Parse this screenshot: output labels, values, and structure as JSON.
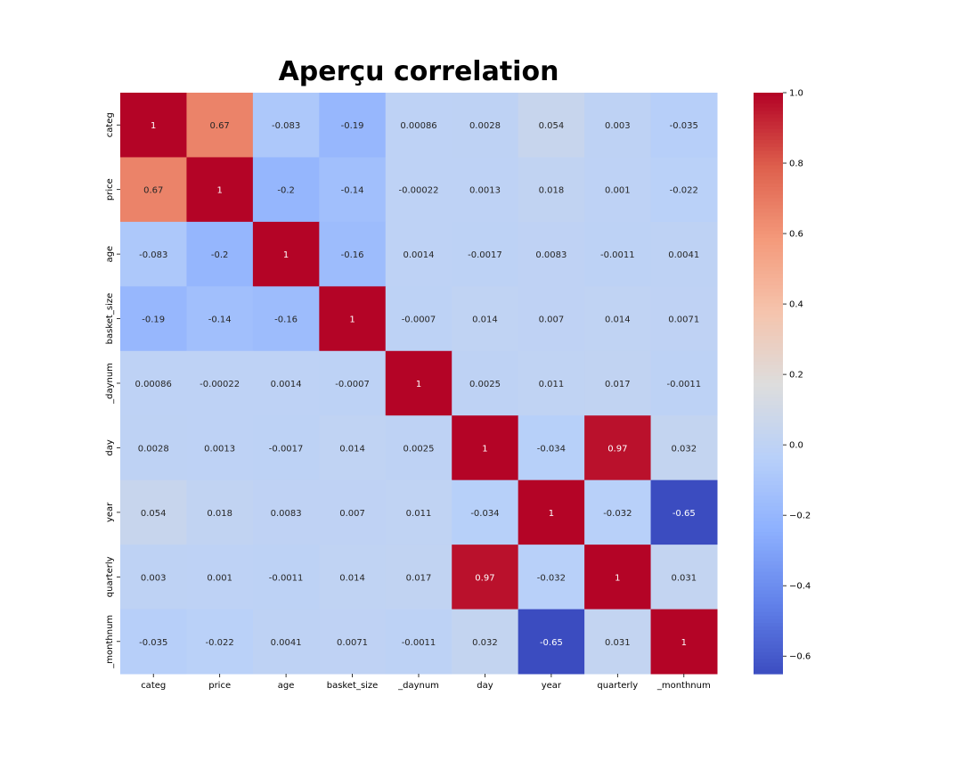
{
  "chart_data": {
    "type": "heatmap",
    "title": "Aperçu correlation",
    "xlabel": "",
    "ylabel": "",
    "categories": [
      "categ",
      "price",
      "age",
      "basket_size",
      "_daynum",
      "day",
      "year",
      "quarterly",
      "_monthnum"
    ],
    "matrix": [
      [
        1,
        0.67,
        -0.083,
        -0.19,
        0.00086,
        0.0028,
        0.054,
        0.003,
        -0.035
      ],
      [
        0.67,
        1,
        -0.2,
        -0.14,
        -0.00022,
        0.0013,
        0.018,
        0.001,
        -0.022
      ],
      [
        -0.083,
        -0.2,
        1,
        -0.16,
        0.0014,
        -0.0017,
        0.0083,
        -0.0011,
        0.0041
      ],
      [
        -0.19,
        -0.14,
        -0.16,
        1,
        -0.0007,
        0.014,
        0.007,
        0.014,
        0.0071
      ],
      [
        0.00086,
        -0.00022,
        0.0014,
        -0.0007,
        1,
        0.0025,
        0.011,
        0.017,
        -0.0011
      ],
      [
        0.0028,
        0.0013,
        -0.0017,
        0.014,
        0.0025,
        1,
        -0.034,
        0.97,
        0.032
      ],
      [
        0.054,
        0.018,
        0.0083,
        0.007,
        0.011,
        -0.034,
        1,
        -0.032,
        -0.65
      ],
      [
        0.003,
        0.001,
        -0.0011,
        0.014,
        0.017,
        0.97,
        -0.032,
        1,
        0.031
      ],
      [
        -0.035,
        -0.022,
        0.0041,
        0.0071,
        -0.0011,
        0.032,
        -0.65,
        0.031,
        1
      ]
    ],
    "colormap": "coolwarm",
    "vmin": -0.65,
    "vmax": 1.0,
    "colorbar_ticks": [
      1.0,
      0.8,
      0.6,
      0.4,
      0.2,
      0.0,
      -0.2,
      -0.4,
      -0.6
    ],
    "colorbar_tick_labels": [
      "1.0",
      "0.8",
      "0.6",
      "0.4",
      "0.2",
      "0.0",
      "−0.2",
      "−0.4",
      "−0.6"
    ],
    "annotations": true,
    "grid": false,
    "legend": "colorbar-right"
  }
}
